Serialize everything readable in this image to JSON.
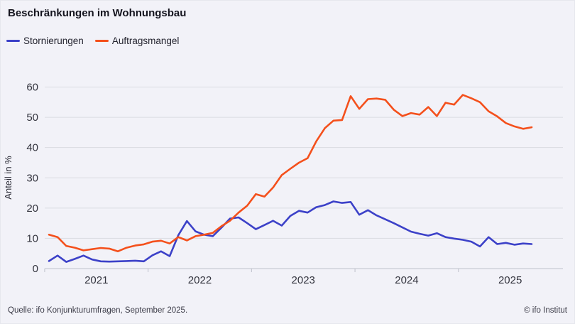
{
  "title": "Beschränkungen im Wohnungsbau",
  "footer": {
    "source": "Quelle: ifo Konjunkturumfragen, September 2025.",
    "copyright": "© ifo Institut"
  },
  "colors": {
    "background": "#f2f2f8",
    "grid": "#dadbe2",
    "axis": "#bfc1cb",
    "tick_text": "#33343e",
    "stornierungen": "#3c41c8",
    "auftragsmangel": "#f4501c"
  },
  "chart_data": {
    "type": "line",
    "title": "Beschränkungen im Wohnungsbau",
    "xlabel": "",
    "ylabel": "Anteil in %",
    "ylim": [
      0,
      60
    ],
    "yticks": [
      0,
      10,
      20,
      30,
      40,
      50,
      60
    ],
    "grid": "horizontal",
    "legend_position": "top-left",
    "frequency": "monthly",
    "x_start": "2021-01",
    "x_end": "2025-09",
    "xticklabels": [
      "2021",
      "2022",
      "2023",
      "2024",
      "2025"
    ],
    "series": [
      {
        "name": "Stornierungen",
        "color": "#3c41c8",
        "values": [
          2.5,
          4.3,
          2.2,
          3.2,
          4.3,
          3.0,
          2.4,
          2.3,
          2.4,
          2.5,
          2.6,
          2.4,
          4.4,
          5.7,
          4.1,
          11.0,
          15.7,
          12.3,
          11.2,
          10.7,
          13.5,
          16.5,
          16.9,
          15.0,
          13.0,
          14.4,
          15.8,
          14.2,
          17.4,
          19.1,
          18.5,
          20.3,
          21.0,
          22.2,
          21.7,
          22.0,
          17.8,
          19.3,
          17.6,
          16.3,
          15.0,
          13.6,
          12.2,
          11.5,
          10.9,
          11.7,
          10.4,
          9.9,
          9.5,
          8.9,
          7.3,
          10.4,
          8.1,
          8.5,
          7.9,
          8.3,
          8.1
        ]
      },
      {
        "name": "Auftragsmangel",
        "color": "#f4501c",
        "values": [
          11.2,
          10.4,
          7.5,
          6.9,
          6.0,
          6.4,
          6.8,
          6.6,
          5.7,
          6.9,
          7.6,
          8.0,
          8.9,
          9.2,
          8.3,
          10.4,
          9.3,
          10.7,
          11.2,
          11.8,
          14.0,
          15.8,
          18.5,
          20.8,
          24.6,
          23.8,
          26.8,
          30.9,
          33.0,
          35.0,
          36.5,
          42.0,
          46.4,
          48.9,
          49.1,
          57.0,
          52.8,
          56.0,
          56.2,
          55.8,
          52.5,
          50.4,
          51.4,
          50.9,
          53.4,
          50.4,
          54.8,
          54.2,
          57.4,
          56.3,
          55.0,
          52.0,
          50.3,
          48.1,
          47.0,
          46.2,
          46.7
        ]
      }
    ]
  }
}
